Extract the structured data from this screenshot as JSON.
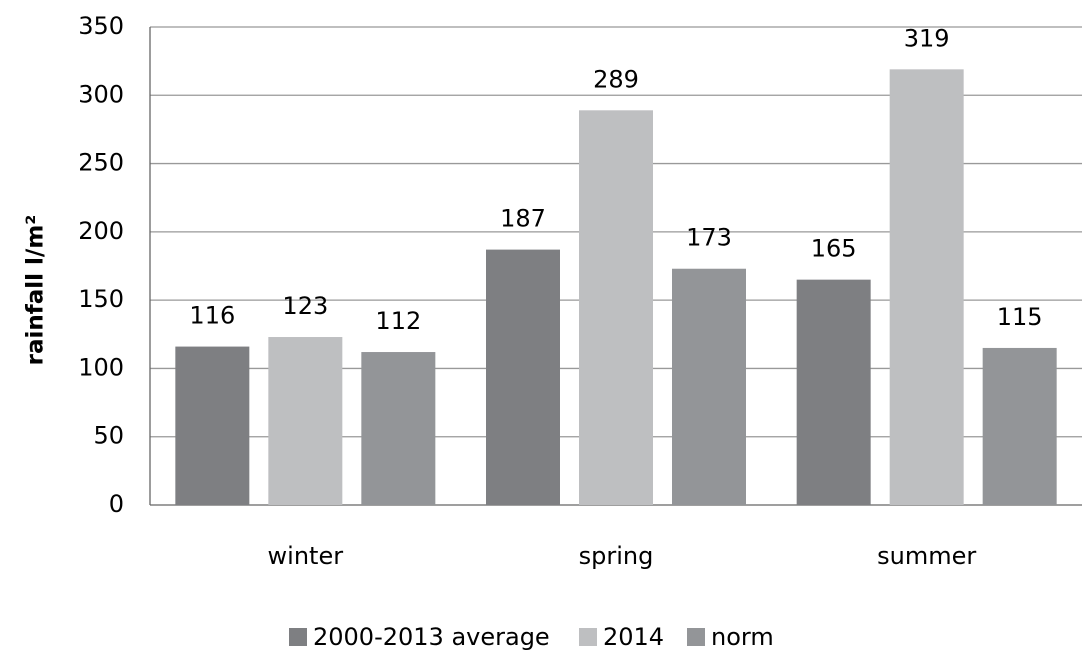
{
  "chart_data": {
    "type": "bar",
    "y_label": "rainfall l/m²",
    "categories": [
      "winter",
      "spring",
      "summer"
    ],
    "series": [
      {
        "name": "2000-2013 average",
        "color": "#7e7f82",
        "values": [
          116,
          187,
          165
        ]
      },
      {
        "name": "2014",
        "color": "#bebfc1",
        "values": [
          123,
          289,
          319
        ]
      },
      {
        "name": "norm",
        "color": "#939598",
        "values": [
          112,
          173,
          115
        ]
      }
    ],
    "ylim": [
      0,
      350
    ],
    "yticks": [
      0,
      50,
      100,
      150,
      200,
      250,
      300,
      350
    ],
    "grid": true,
    "legend": "bottom"
  }
}
